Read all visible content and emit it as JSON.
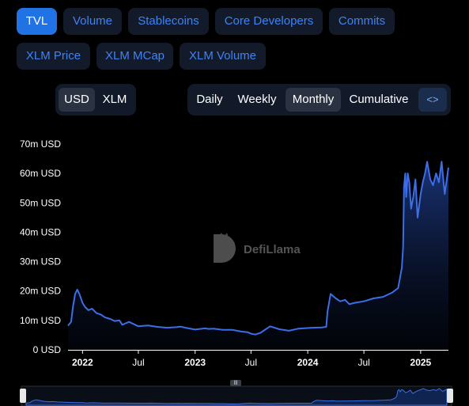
{
  "metric_tabs": [
    {
      "label": "TVL",
      "active": true
    },
    {
      "label": "Volume",
      "active": false
    },
    {
      "label": "Stablecoins",
      "active": false
    },
    {
      "label": "Core Developers",
      "active": false
    },
    {
      "label": "Commits",
      "active": false
    },
    {
      "label": "XLM Price",
      "active": false
    },
    {
      "label": "XLM MCap",
      "active": false
    },
    {
      "label": "XLM Volume",
      "active": false
    }
  ],
  "currency_toggle": [
    {
      "label": "USD",
      "active": true
    },
    {
      "label": "XLM",
      "active": false
    }
  ],
  "period_toggle": [
    {
      "label": "Daily",
      "active": false
    },
    {
      "label": "Weekly",
      "active": false
    },
    {
      "label": "Monthly",
      "active": true
    },
    {
      "label": "Cumulative",
      "active": false
    }
  ],
  "embed_button_icon": "code-icon",
  "watermark": {
    "text": "DefiLlama"
  },
  "colors": {
    "background": "#000000",
    "accent": "#2172e5",
    "line": "#3b6ee8",
    "tab_bg": "#131b2a",
    "tab_text": "#3f82f2"
  },
  "chart_data": {
    "type": "area",
    "title": "",
    "xlabel": "",
    "ylabel": "",
    "y_unit": "USD",
    "ylim": [
      0,
      70000000
    ],
    "y_ticks": [
      0,
      10000000,
      20000000,
      30000000,
      40000000,
      50000000,
      60000000,
      70000000
    ],
    "y_tick_labels": [
      "0 USD",
      "10m USD",
      "20m USD",
      "30m USD",
      "40m USD",
      "50m USD",
      "60m USD",
      "70m USD"
    ],
    "x_range": [
      "2021-11-15",
      "2025-04-01"
    ],
    "x_ticks": [
      {
        "label": "2022",
        "date": "2022-01-01",
        "bold": true
      },
      {
        "label": "Jul",
        "date": "2022-07-01",
        "bold": false
      },
      {
        "label": "2023",
        "date": "2023-01-01",
        "bold": true
      },
      {
        "label": "Jul",
        "date": "2023-07-01",
        "bold": false
      },
      {
        "label": "2024",
        "date": "2024-01-01",
        "bold": true
      },
      {
        "label": "Jul",
        "date": "2024-07-01",
        "bold": false
      },
      {
        "label": "2025",
        "date": "2025-01-01",
        "bold": true
      }
    ],
    "grid": false,
    "legend": "none",
    "series": [
      {
        "x": [
          "2021-11-15",
          "2021-11-25",
          "2021-12-01",
          "2021-12-08",
          "2021-12-15",
          "2021-12-22",
          "2022-01-01",
          "2022-01-10",
          "2022-01-20",
          "2022-02-01",
          "2022-02-15",
          "2022-03-01",
          "2022-03-15",
          "2022-04-01",
          "2022-04-15",
          "2022-05-01",
          "2022-05-10",
          "2022-05-20",
          "2022-06-01",
          "2022-07-01",
          "2022-08-01",
          "2022-09-01",
          "2022-10-01",
          "2022-11-01",
          "2022-11-15",
          "2022-12-01",
          "2023-01-01",
          "2023-02-01",
          "2023-02-15",
          "2023-03-01",
          "2023-04-01",
          "2023-05-01",
          "2023-06-01",
          "2023-06-20",
          "2023-07-01",
          "2023-07-15",
          "2023-08-01",
          "2023-09-01",
          "2023-10-01",
          "2023-11-01",
          "2023-12-01",
          "2024-01-15",
          "2024-02-15",
          "2024-03-01",
          "2024-03-05",
          "2024-03-15",
          "2024-04-01",
          "2024-04-15",
          "2024-05-01",
          "2024-05-15",
          "2024-06-01",
          "2024-07-01",
          "2024-08-01",
          "2024-09-01",
          "2024-10-01",
          "2024-10-20",
          "2024-11-01",
          "2024-11-05",
          "2024-11-08",
          "2024-11-12",
          "2024-11-15",
          "2024-11-20",
          "2024-11-25",
          "2024-12-01",
          "2024-12-08",
          "2024-12-15",
          "2024-12-22",
          "2025-01-01",
          "2025-01-08",
          "2025-01-15",
          "2025-01-22",
          "2025-02-01",
          "2025-02-10",
          "2025-02-20",
          "2025-03-01",
          "2025-03-10",
          "2025-03-20",
          "2025-04-01"
        ],
        "values": [
          8200000,
          9500000,
          14500000,
          19000000,
          20500000,
          19000000,
          16000000,
          14500000,
          13500000,
          14000000,
          12500000,
          12000000,
          11000000,
          10500000,
          9800000,
          10000000,
          8500000,
          9000000,
          9500000,
          8000000,
          8300000,
          7800000,
          7500000,
          7700000,
          7900000,
          7500000,
          6900000,
          7300000,
          7100000,
          7200000,
          6800000,
          6800000,
          6200000,
          6000000,
          5500000,
          5200000,
          5800000,
          8000000,
          7000000,
          6500000,
          7200000,
          7500000,
          7600000,
          7800000,
          13000000,
          19000000,
          17500000,
          16500000,
          17000000,
          15500000,
          16000000,
          16500000,
          17500000,
          18000000,
          19500000,
          21000000,
          28000000,
          35000000,
          55000000,
          60000000,
          52000000,
          60000000,
          57000000,
          48000000,
          52000000,
          58000000,
          45000000,
          53000000,
          57000000,
          60000000,
          64000000,
          58000000,
          56000000,
          60000000,
          57000000,
          64000000,
          53000000,
          62000000
        ]
      }
    ]
  }
}
